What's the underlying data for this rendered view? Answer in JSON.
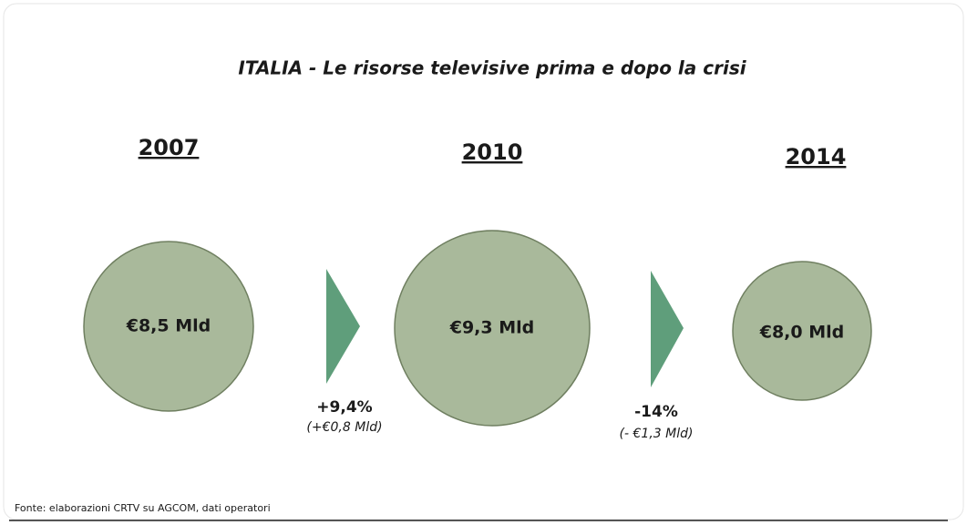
{
  "title": "ITALIA - Le risorse televisive prima e dopo la crisi",
  "periods": [
    {
      "year": "2007",
      "value": "€8,5 Mld"
    },
    {
      "year": "2010",
      "value": "€9,3 Mld"
    },
    {
      "year": "2014",
      "value": "€8,0 Mld"
    }
  ],
  "changes": [
    {
      "percent": "+9,4%",
      "amount": "(+€0,8 Mld)"
    },
    {
      "percent": "-14%",
      "amount": "(- €1,3 Mld)"
    }
  ],
  "source": "Fonte: elaborazioni CRTV su AGCOM, dati operatori"
}
